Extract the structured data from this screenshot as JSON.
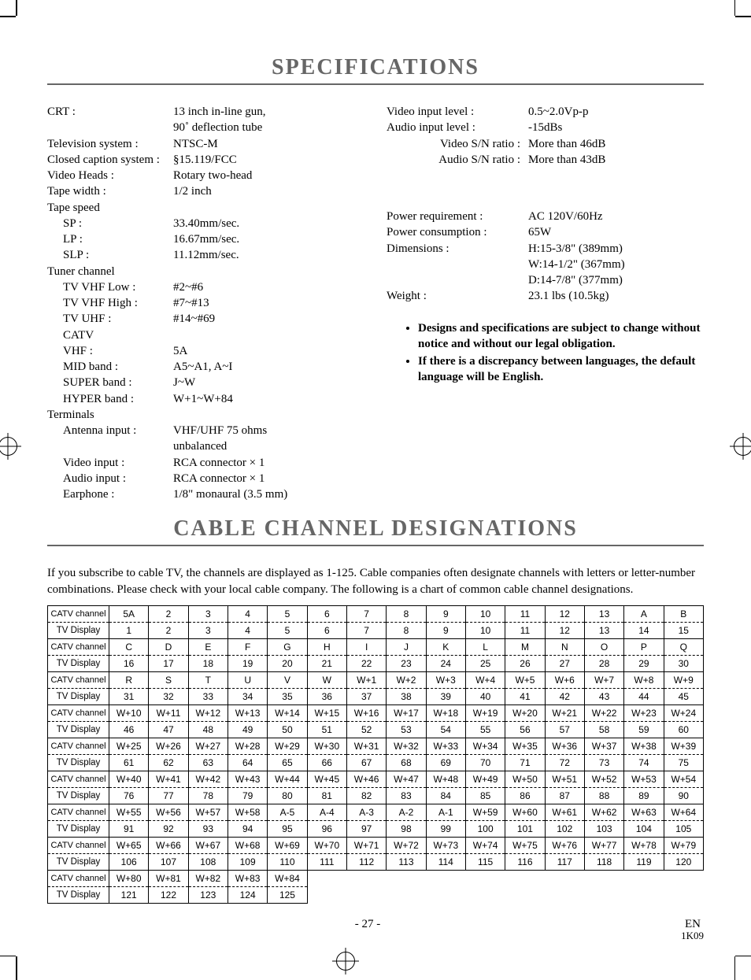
{
  "title1": "SPECIFICATIONS",
  "title2": "CABLE CHANNEL DESIGNATIONS",
  "specs_left": [
    {
      "k": "CRT :",
      "v": "13 inch in-line gun,"
    },
    {
      "k": "",
      "v": "90˚ deflection tube"
    },
    {
      "k": "Television system :",
      "v": "NTSC-M"
    },
    {
      "k": "Closed caption system :",
      "v": "§15.119/FCC"
    },
    {
      "k": "Video Heads :",
      "v": "Rotary two-head"
    },
    {
      "k": "Tape width :",
      "v": "1/2 inch"
    },
    {
      "k": "Tape speed",
      "v": ""
    },
    {
      "k": "SP :",
      "v": "33.40mm/sec.",
      "ind": 1
    },
    {
      "k": "LP :",
      "v": "16.67mm/sec.",
      "ind": 1
    },
    {
      "k": "SLP :",
      "v": "11.12mm/sec.",
      "ind": 1
    },
    {
      "k": "Tuner channel",
      "v": ""
    },
    {
      "k": "TV VHF Low :",
      "v": "#2~#6",
      "ind": 1
    },
    {
      "k": "TV VHF High :",
      "v": "#7~#13",
      "ind": 1
    },
    {
      "k": "TV UHF :",
      "v": "#14~#69",
      "ind": 1
    },
    {
      "k": "CATV",
      "v": "",
      "ind": 1
    },
    {
      "k": "VHF :",
      "v": "5A",
      "ind": 1
    },
    {
      "k": "MID band :",
      "v": "A5~A1, A~I",
      "ind": 1
    },
    {
      "k": "SUPER band :",
      "v": "J~W",
      "ind": 1
    },
    {
      "k": "HYPER band :",
      "v": "W+1~W+84",
      "ind": 1
    },
    {
      "k": "Terminals",
      "v": ""
    },
    {
      "k": "Antenna input :",
      "v": "VHF/UHF 75 ohms",
      "ind": 1
    },
    {
      "k": "",
      "v": "unbalanced"
    },
    {
      "k": "Video input :",
      "v": "RCA connector × 1",
      "ind": 1
    },
    {
      "k": "Audio input :",
      "v": "RCA connector × 1",
      "ind": 1
    },
    {
      "k": "Earphone :",
      "v": "1/8\" monaural (3.5 mm)",
      "ind": 1
    }
  ],
  "specs_right_1": [
    {
      "k": "Video input level :",
      "v": "0.5~2.0Vp-p"
    },
    {
      "k": "Audio input level :",
      "v": "-15dBs"
    },
    {
      "k": "Video S/N ratio :",
      "v": "More than 46dB",
      "rk": 1
    },
    {
      "k": "Audio S/N ratio :",
      "v": "More than 43dB",
      "rk": 1
    }
  ],
  "specs_right_2": [
    {
      "k": "Power requirement :",
      "v": "AC 120V/60Hz"
    },
    {
      "k": "Power consumption :",
      "v": "65W"
    },
    {
      "k": "Dimensions :",
      "v": "H:15-3/8\" (389mm)"
    },
    {
      "k": "",
      "v": "W:14-1/2\" (367mm)"
    },
    {
      "k": "",
      "v": "D:14-7/8\" (377mm)"
    },
    {
      "k": "Weight :",
      "v": "23.1 lbs (10.5kg)"
    }
  ],
  "notes": [
    "Designs and specifications are subject to change without notice and without our legal obligation.",
    "If there is a discrepancy between languages, the default language will be English."
  ],
  "cable_intro": "If you subscribe to cable TV, the channels are displayed as 1-125. Cable companies often designate channels with letters or letter-number combinations. Please check with your local cable company. The following is a chart of common cable channel designations.",
  "row_labels": {
    "catv": "CATV channel",
    "disp": "TV Display"
  },
  "cable_rows": [
    {
      "catv": [
        "5A",
        "2",
        "3",
        "4",
        "5",
        "6",
        "7",
        "8",
        "9",
        "10",
        "11",
        "12",
        "13",
        "A",
        "B"
      ],
      "disp": [
        "1",
        "2",
        "3",
        "4",
        "5",
        "6",
        "7",
        "8",
        "9",
        "10",
        "11",
        "12",
        "13",
        "14",
        "15"
      ]
    },
    {
      "catv": [
        "C",
        "D",
        "E",
        "F",
        "G",
        "H",
        "I",
        "J",
        "K",
        "L",
        "M",
        "N",
        "O",
        "P",
        "Q"
      ],
      "disp": [
        "16",
        "17",
        "18",
        "19",
        "20",
        "21",
        "22",
        "23",
        "24",
        "25",
        "26",
        "27",
        "28",
        "29",
        "30"
      ]
    },
    {
      "catv": [
        "R",
        "S",
        "T",
        "U",
        "V",
        "W",
        "W+1",
        "W+2",
        "W+3",
        "W+4",
        "W+5",
        "W+6",
        "W+7",
        "W+8",
        "W+9"
      ],
      "disp": [
        "31",
        "32",
        "33",
        "34",
        "35",
        "36",
        "37",
        "38",
        "39",
        "40",
        "41",
        "42",
        "43",
        "44",
        "45"
      ]
    },
    {
      "catv": [
        "W+10",
        "W+11",
        "W+12",
        "W+13",
        "W+14",
        "W+15",
        "W+16",
        "W+17",
        "W+18",
        "W+19",
        "W+20",
        "W+21",
        "W+22",
        "W+23",
        "W+24"
      ],
      "disp": [
        "46",
        "47",
        "48",
        "49",
        "50",
        "51",
        "52",
        "53",
        "54",
        "55",
        "56",
        "57",
        "58",
        "59",
        "60"
      ]
    },
    {
      "catv": [
        "W+25",
        "W+26",
        "W+27",
        "W+28",
        "W+29",
        "W+30",
        "W+31",
        "W+32",
        "W+33",
        "W+34",
        "W+35",
        "W+36",
        "W+37",
        "W+38",
        "W+39"
      ],
      "disp": [
        "61",
        "62",
        "63",
        "64",
        "65",
        "66",
        "67",
        "68",
        "69",
        "70",
        "71",
        "72",
        "73",
        "74",
        "75"
      ]
    },
    {
      "catv": [
        "W+40",
        "W+41",
        "W+42",
        "W+43",
        "W+44",
        "W+45",
        "W+46",
        "W+47",
        "W+48",
        "W+49",
        "W+50",
        "W+51",
        "W+52",
        "W+53",
        "W+54"
      ],
      "disp": [
        "76",
        "77",
        "78",
        "79",
        "80",
        "81",
        "82",
        "83",
        "84",
        "85",
        "86",
        "87",
        "88",
        "89",
        "90"
      ]
    },
    {
      "catv": [
        "W+55",
        "W+56",
        "W+57",
        "W+58",
        "A-5",
        "A-4",
        "A-3",
        "A-2",
        "A-1",
        "W+59",
        "W+60",
        "W+61",
        "W+62",
        "W+63",
        "W+64"
      ],
      "disp": [
        "91",
        "92",
        "93",
        "94",
        "95",
        "96",
        "97",
        "98",
        "99",
        "100",
        "101",
        "102",
        "103",
        "104",
        "105"
      ]
    },
    {
      "catv": [
        "W+65",
        "W+66",
        "W+67",
        "W+68",
        "W+69",
        "W+70",
        "W+71",
        "W+72",
        "W+73",
        "W+74",
        "W+75",
        "W+76",
        "W+77",
        "W+78",
        "W+79"
      ],
      "disp": [
        "106",
        "107",
        "108",
        "109",
        "110",
        "111",
        "112",
        "113",
        "114",
        "115",
        "116",
        "117",
        "118",
        "119",
        "120"
      ]
    },
    {
      "catv": [
        "W+80",
        "W+81",
        "W+82",
        "W+83",
        "W+84",
        "",
        "",
        "",
        "",
        "",
        "",
        "",
        "",
        "",
        ""
      ],
      "disp": [
        "121",
        "122",
        "123",
        "124",
        "125",
        "",
        "",
        "",
        "",
        "",
        "",
        "",
        "",
        "",
        ""
      ]
    }
  ],
  "page_number": "- 27 -",
  "lang": "EN",
  "doc_code": "1K09"
}
